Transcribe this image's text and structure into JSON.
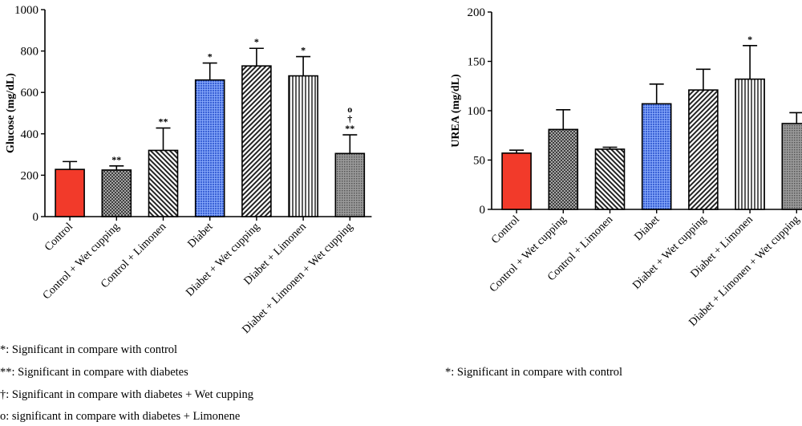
{
  "chart_data": [
    {
      "type": "bar",
      "ylabel": "Glucose (mg/dL)",
      "ylim": [
        0,
        1000
      ],
      "yticks": [
        0,
        200,
        400,
        600,
        800,
        1000
      ],
      "categories": [
        "Control",
        "Control + Wet cupping",
        "Control + Limonen",
        "Diabet",
        "Diabet + Wet cupping",
        "Diabet + Limonen",
        "Diabet + Limonen + Wet cupping"
      ],
      "values": [
        228,
        225,
        320,
        660,
        728,
        680,
        305
      ],
      "errors": [
        38,
        20,
        108,
        82,
        85,
        93,
        90
      ],
      "patterns": [
        "solid-red",
        "crosshatch",
        "diag-rev",
        "blue-grid",
        "diag",
        "vertical",
        "dots"
      ],
      "significance": [
        "",
        "**",
        "**",
        "*",
        "*",
        "*",
        "o\n†\n**"
      ],
      "notes": [
        "*: Significant in compare with control",
        "**: Significant in compare with diabetes",
        "†: Significant in compare with diabetes + Wet cupping",
        "o: significant in compare with diabetes + Limonene"
      ]
    },
    {
      "type": "bar",
      "ylabel": "UREA (mg/dL)",
      "ylim": [
        0,
        200
      ],
      "yticks": [
        0,
        50,
        100,
        150,
        200
      ],
      "categories": [
        "Control",
        "Control + Wet cupping",
        "Control + Limonen",
        "Diabet",
        "Diabet + Wet cupping",
        "Diabet + Limonen",
        "Diabet + Limonen + Wet cupping"
      ],
      "values": [
        57,
        81,
        61,
        107,
        121,
        132,
        87
      ],
      "errors": [
        3,
        20,
        2,
        20,
        21,
        34,
        11
      ],
      "patterns": [
        "solid-red",
        "crosshatch",
        "diag-rev",
        "blue-grid",
        "diag",
        "vertical",
        "dots"
      ],
      "significance": [
        "",
        "",
        "",
        "",
        "",
        "*",
        ""
      ],
      "notes": [
        "*: Significant in compare with control"
      ]
    }
  ],
  "colors": {
    "control": "#f23a2a",
    "diabet": "#3a62d6",
    "pattern_bg": "#c9c9c9",
    "pattern_ink": "#222222"
  }
}
